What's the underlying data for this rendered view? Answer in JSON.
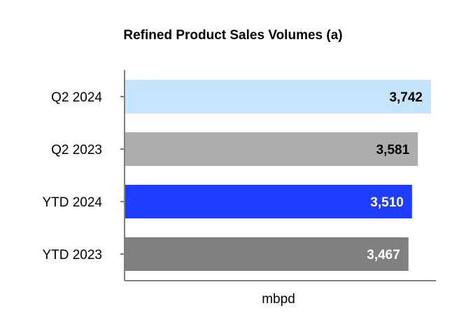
{
  "chart_data": {
    "type": "bar",
    "orientation": "horizontal",
    "title": "Refined Product Sales Volumes (a)",
    "categories": [
      "Q2 2024",
      "Q2 2023",
      "YTD 2024",
      "YTD 2023"
    ],
    "values": [
      3742,
      3581,
      3510,
      3467
    ],
    "value_labels": [
      "3,742",
      "3,581",
      "3,510",
      "3,467"
    ],
    "bar_colors": [
      "#c5e5ff",
      "#adadad",
      "#1f3dff",
      "#808080"
    ],
    "label_colors": [
      "#000000",
      "#000000",
      "#ffffff",
      "#ffffff"
    ],
    "xlabel": "mbpd",
    "ylabel": "",
    "xlim": [
      0,
      3850
    ]
  }
}
